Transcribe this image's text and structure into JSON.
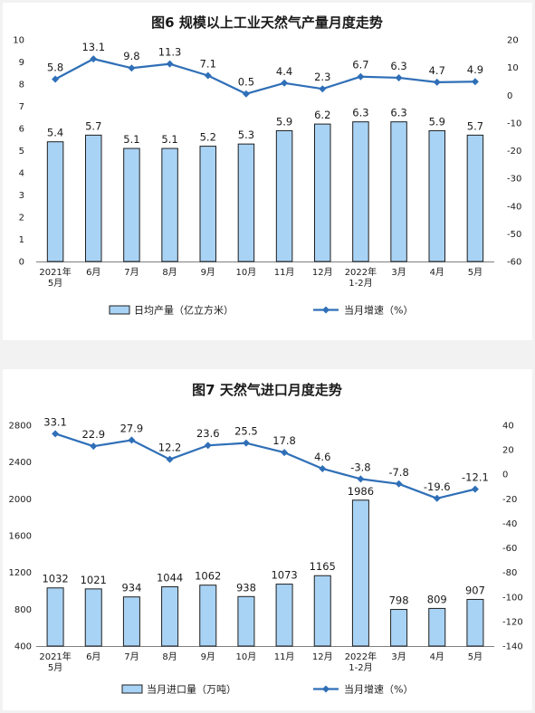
{
  "chart_data": [
    {
      "type": "bar",
      "title": "图6  规模以上工业天然气产量月度走势",
      "categories": [
        [
          "2021年",
          "5月"
        ],
        [
          "6月"
        ],
        [
          "7月"
        ],
        [
          "8月"
        ],
        [
          "9月"
        ],
        [
          "10月"
        ],
        [
          "11月"
        ],
        [
          "12月"
        ],
        [
          "2022年",
          "1-2月"
        ],
        [
          "3月"
        ],
        [
          "4月"
        ],
        [
          "5月"
        ]
      ],
      "series": [
        {
          "name": "日均产量（亿立方米）",
          "kind": "bar",
          "axis": "left",
          "values": [
            5.4,
            5.7,
            5.1,
            5.1,
            5.2,
            5.3,
            5.9,
            6.2,
            6.3,
            6.3,
            5.9,
            5.7
          ],
          "labels": [
            "5.4",
            "5.7",
            "5.1",
            "5.1",
            "5.2",
            "5.3",
            "5.9",
            "6.2",
            "6.3",
            "6.3",
            "5.9",
            "5.7"
          ]
        },
        {
          "name": "当月增速（%）",
          "kind": "line",
          "axis": "right",
          "values": [
            5.8,
            13.1,
            9.8,
            11.3,
            7.1,
            0.5,
            4.4,
            2.3,
            6.7,
            6.3,
            4.7,
            4.9
          ],
          "labels": [
            "5.8",
            "13.1",
            "9.8",
            "11.3",
            "7.1",
            "0.5",
            "4.4",
            "2.3",
            "6.7",
            "6.3",
            "4.7",
            "4.9"
          ]
        }
      ],
      "ylim_left": [
        0,
        10
      ],
      "yticks_left": [
        "0",
        "1",
        "2",
        "3",
        "4",
        "5",
        "6",
        "7",
        "8",
        "9",
        "10"
      ],
      "ylim_right": [
        -60,
        20
      ],
      "yticks_right": [
        "-60",
        "-50",
        "-40",
        "-30",
        "-20",
        "-10",
        "0",
        "10",
        "20"
      ],
      "legend_position": "bottom",
      "colors": {
        "bar_fill": "#a9d3f5",
        "bar_stroke": "#1f1f1f",
        "line": "#2f6fb7"
      }
    },
    {
      "type": "bar",
      "title": "图7  天然气进口月度走势",
      "categories": [
        [
          "2021年",
          "5月"
        ],
        [
          "6月"
        ],
        [
          "7月"
        ],
        [
          "8月"
        ],
        [
          "9月"
        ],
        [
          "10月"
        ],
        [
          "11月"
        ],
        [
          "12月"
        ],
        [
          "2022年",
          "1-2月"
        ],
        [
          "3月"
        ],
        [
          "4月"
        ],
        [
          "5月"
        ]
      ],
      "series": [
        {
          "name": "当月进口量（万吨）",
          "kind": "bar",
          "axis": "left",
          "values": [
            1032,
            1021,
            934,
            1044,
            1062,
            938,
            1073,
            1165,
            1986,
            798,
            809,
            907
          ],
          "labels": [
            "1032",
            "1021",
            "934",
            "1044",
            "1062",
            "938",
            "1073",
            "1165",
            "1986",
            "798",
            "809",
            "907"
          ]
        },
        {
          "name": "当月增速（%）",
          "kind": "line",
          "axis": "right",
          "values": [
            33.1,
            22.9,
            27.9,
            12.2,
            23.6,
            25.5,
            17.8,
            4.6,
            -3.8,
            -7.8,
            -19.6,
            -12.1
          ],
          "labels": [
            "33.1",
            "22.9",
            "27.9",
            "12.2",
            "23.6",
            "25.5",
            "17.8",
            "4.6",
            "-3.8",
            "-7.8",
            "-19.6",
            "-12.1"
          ]
        }
      ],
      "ylim_left": [
        400,
        2800
      ],
      "yticks_left": [
        "400",
        "800",
        "1200",
        "1600",
        "2000",
        "2400",
        "2800"
      ],
      "ylim_right": [
        -140,
        40
      ],
      "yticks_right": [
        "-140",
        "-120",
        "-100",
        "-80",
        "-60",
        "-40",
        "-20",
        "0",
        "20",
        "40"
      ],
      "legend_position": "bottom",
      "colors": {
        "bar_fill": "#a9d3f5",
        "bar_stroke": "#1f1f1f",
        "line": "#2f6fb7"
      }
    }
  ]
}
